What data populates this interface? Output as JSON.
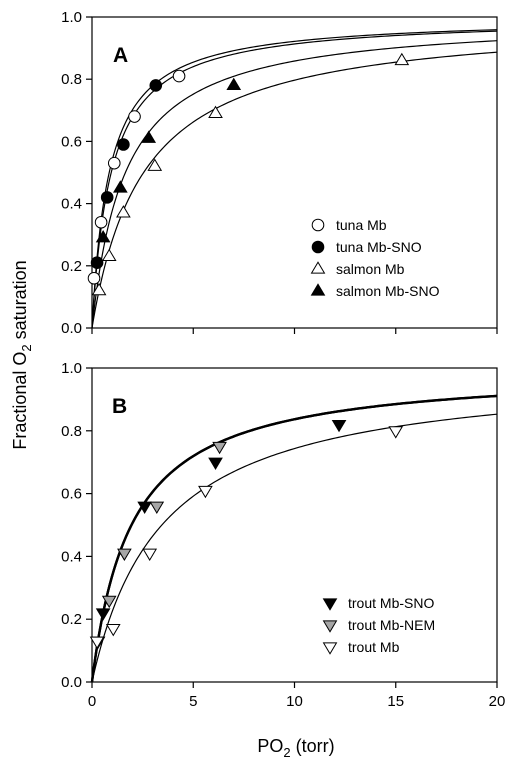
{
  "chart_data": [
    {
      "type": "scatter",
      "panel_label": "A",
      "xlim": [
        0,
        20
      ],
      "ylim": [
        0,
        1.0
      ],
      "x_ticks": [],
      "y_ticks": [
        "0.0",
        "0.2",
        "0.4",
        "0.6",
        "0.8",
        "1.0"
      ],
      "legend_position": "middle-right",
      "grid": false,
      "series": [
        {
          "name": "tuna Mb",
          "marker": "circle-open",
          "points": [
            [
              0.1,
              0.16
            ],
            [
              0.45,
              0.34
            ],
            [
              1.1,
              0.53
            ],
            [
              2.1,
              0.68
            ],
            [
              4.3,
              0.81
            ]
          ],
          "fit_p50": 0.95,
          "fit_weight": 1.2
        },
        {
          "name": "tuna Mb-SNO",
          "marker": "circle-filled",
          "points": [
            [
              0.25,
              0.21
            ],
            [
              0.75,
              0.42
            ],
            [
              1.55,
              0.59
            ],
            [
              3.15,
              0.78
            ]
          ],
          "fit_p50": 0.85,
          "fit_weight": 1.2
        },
        {
          "name": "salmon Mb",
          "marker": "triangle-up-open",
          "points": [
            [
              0.35,
              0.12
            ],
            [
              0.85,
              0.23
            ],
            [
              1.55,
              0.37
            ],
            [
              3.1,
              0.52
            ],
            [
              6.1,
              0.69
            ],
            [
              15.3,
              0.86
            ]
          ],
          "fit_p50": 2.55,
          "fit_weight": 1.2
        },
        {
          "name": "salmon Mb-SNO",
          "marker": "triangle-up-filled",
          "points": [
            [
              0.55,
              0.29
            ],
            [
              1.4,
              0.45
            ],
            [
              2.8,
              0.61
            ],
            [
              7.0,
              0.78
            ]
          ],
          "fit_p50": 1.65,
          "fit_weight": 1.2
        }
      ]
    },
    {
      "type": "scatter",
      "panel_label": "B",
      "xlim": [
        0,
        20
      ],
      "ylim": [
        0,
        1.0
      ],
      "x_ticks": [
        "0",
        "5",
        "10",
        "15",
        "20"
      ],
      "y_ticks": [
        "0.0",
        "0.2",
        "0.4",
        "0.6",
        "0.8",
        "1.0"
      ],
      "xlabel": "PO",
      "xlabel_subscript": "2",
      "xlabel_suffix": " (torr)",
      "legend_position": "bottom-right",
      "grid": false,
      "series": [
        {
          "name": "trout Mb-SNO",
          "marker": "triangle-down-filled",
          "points": [
            [
              0.55,
              0.22
            ],
            [
              2.6,
              0.56
            ],
            [
              6.1,
              0.7
            ],
            [
              12.2,
              0.82
            ]
          ],
          "fit_p50": 1.95,
          "fit_weight": 2.4
        },
        {
          "name": "trout Mb-NEM",
          "marker": "triangle-down-gray",
          "points": [
            [
              0.3,
              0.13
            ],
            [
              0.85,
              0.26
            ],
            [
              1.6,
              0.41
            ],
            [
              3.2,
              0.56
            ],
            [
              6.3,
              0.75
            ]
          ],
          "fit_p50": 1.95,
          "fit_weight": 2.4
        },
        {
          "name": "trout Mb",
          "marker": "triangle-down-open",
          "points": [
            [
              0.25,
              0.13
            ],
            [
              1.05,
              0.17
            ],
            [
              2.85,
              0.41
            ],
            [
              5.6,
              0.61
            ],
            [
              15.0,
              0.8
            ]
          ],
          "fit_p50": 3.45,
          "fit_weight": 1.2
        }
      ]
    }
  ],
  "ylabel": "Fractional O",
  "ylabel_subscript": "2",
  "ylabel_suffix": " saturation",
  "colors": {
    "axis": "#000000",
    "filled": "#000000",
    "open": "#ffffff",
    "gray": "#a6a6a6"
  }
}
